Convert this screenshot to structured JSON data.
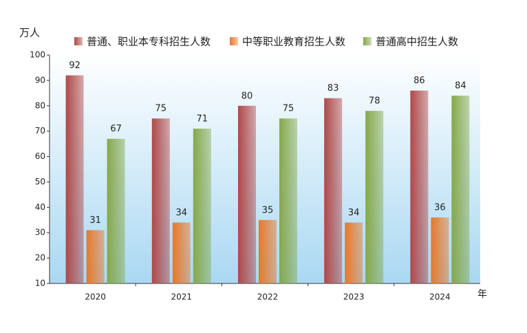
{
  "chart_data": {
    "type": "bar",
    "y_label": "万人",
    "x_label": "年",
    "categories": [
      "2020",
      "2021",
      "2022",
      "2023",
      "2024"
    ],
    "series": [
      {
        "name": "普通、职业本专科招生人数",
        "color": "#b04848",
        "values": [
          92,
          75,
          80,
          83,
          86
        ]
      },
      {
        "name": "中等职业教育招生人数",
        "color": "#e8782a",
        "values": [
          31,
          34,
          35,
          34,
          36
        ]
      },
      {
        "name": "普通高中招生人数",
        "color": "#86a84a",
        "values": [
          67,
          71,
          75,
          78,
          84
        ]
      }
    ],
    "ylim": [
      10,
      100
    ],
    "yticks": [
      10,
      20,
      30,
      40,
      50,
      60,
      70,
      80,
      90,
      100
    ],
    "grid": false
  }
}
